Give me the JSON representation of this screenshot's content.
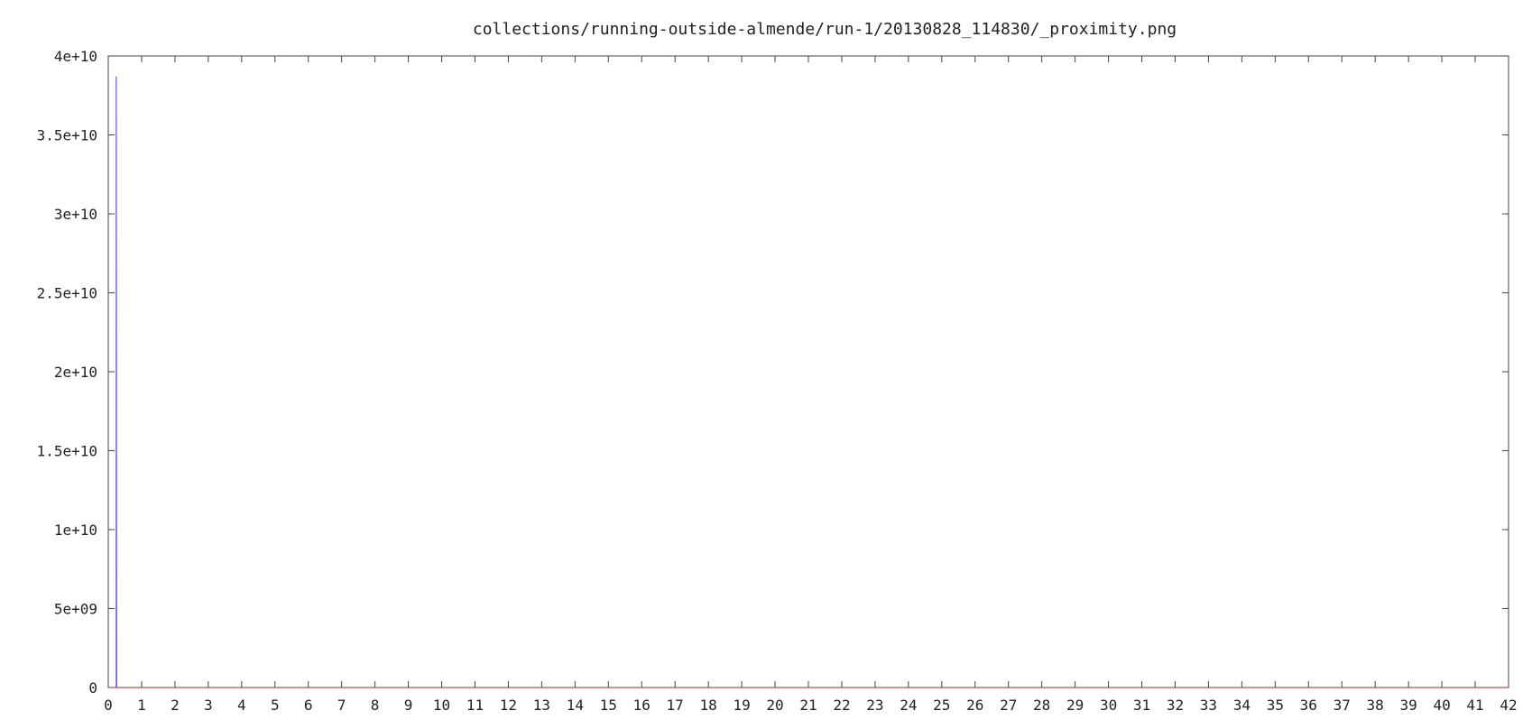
{
  "chart_data": {
    "type": "line",
    "title": "collections/running-outside-almende/run-1/20130828_114830/_proximity.png",
    "xlabel": "",
    "ylabel": "",
    "xlim": [
      0,
      42
    ],
    "ylim": [
      0,
      40000000000
    ],
    "grid": false,
    "legend": "none",
    "x_ticks": [
      "0",
      "1",
      "2",
      "3",
      "4",
      "5",
      "6",
      "7",
      "8",
      "9",
      "10",
      "11",
      "12",
      "13",
      "14",
      "15",
      "16",
      "17",
      "18",
      "19",
      "20",
      "21",
      "22",
      "23",
      "24",
      "25",
      "26",
      "27",
      "28",
      "29",
      "30",
      "31",
      "32",
      "33",
      "34",
      "35",
      "36",
      "37",
      "38",
      "39",
      "40",
      "41",
      "42"
    ],
    "y_ticks": [
      {
        "value": 0,
        "label": "0"
      },
      {
        "value": 5000000000,
        "label": "5e+09"
      },
      {
        "value": 10000000000,
        "label": "1e+10"
      },
      {
        "value": 15000000000,
        "label": "1.5e+10"
      },
      {
        "value": 20000000000,
        "label": "2e+10"
      },
      {
        "value": 25000000000,
        "label": "2.5e+10"
      },
      {
        "value": 30000000000,
        "label": "3e+10"
      },
      {
        "value": 35000000000,
        "label": "3.5e+10"
      },
      {
        "value": 40000000000,
        "label": "4e+10"
      }
    ],
    "series": [
      {
        "color": "#3a3adf",
        "points": [
          [
            0.24,
            0
          ],
          [
            0.24,
            38700000000
          ],
          [
            0.25,
            0
          ]
        ]
      },
      {
        "color": "#b22222",
        "points": [
          [
            0,
            0
          ],
          [
            42,
            0
          ]
        ]
      }
    ]
  }
}
